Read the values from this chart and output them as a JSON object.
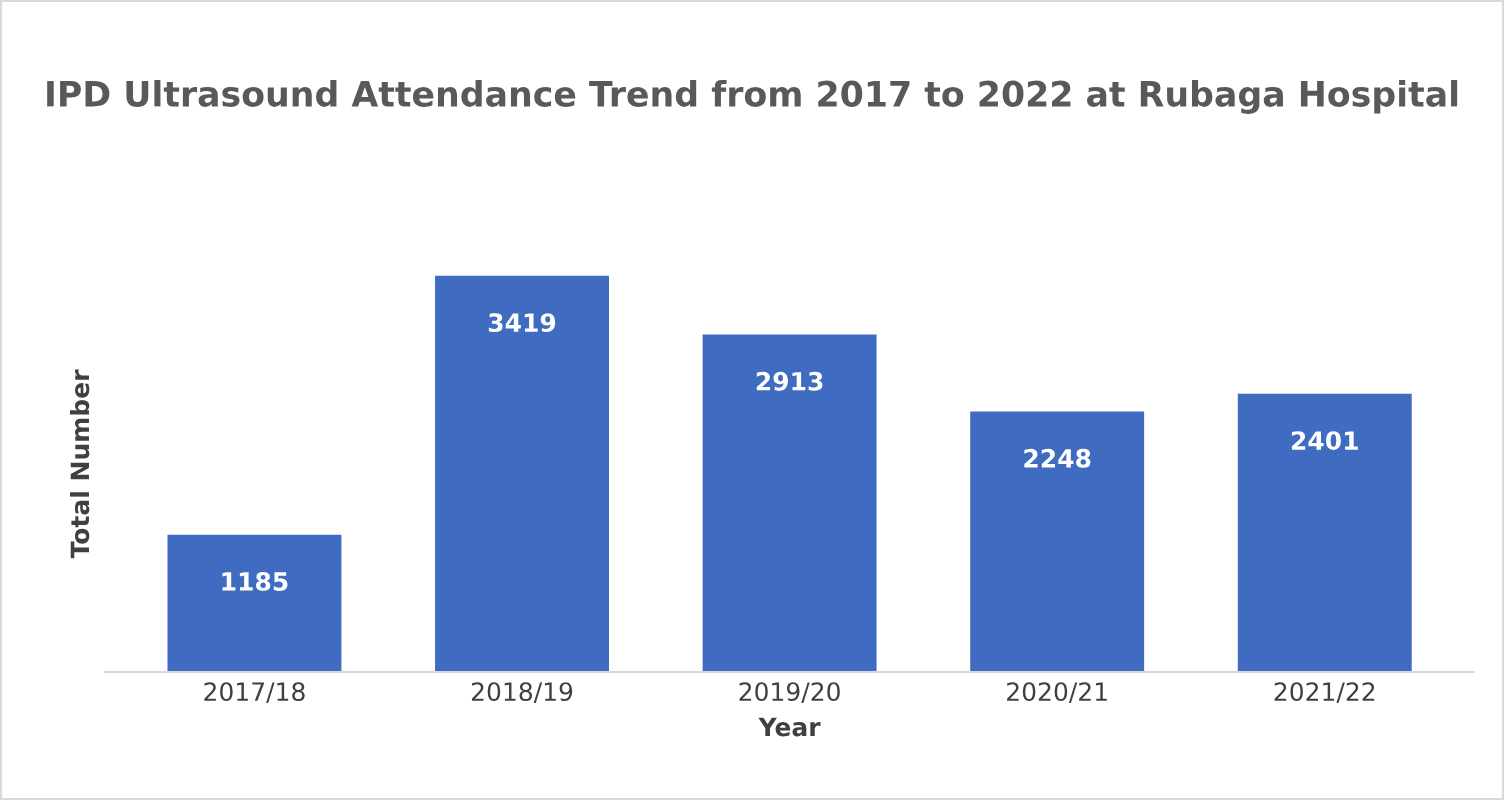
{
  "chart_data": {
    "type": "bar",
    "title": "IPD Ultrasound Attendance Trend from 2017 to 2022 at Rubaga Hospital",
    "xlabel": "Year",
    "ylabel": "Total Number",
    "categories": [
      "2017/18",
      "2018/19",
      "2019/20",
      "2020/21",
      "2021/22"
    ],
    "values": [
      1185,
      3419,
      2913,
      2248,
      2401
    ],
    "color": "#3f6cc0",
    "data_labels": true,
    "grid": false,
    "legend": false
  }
}
